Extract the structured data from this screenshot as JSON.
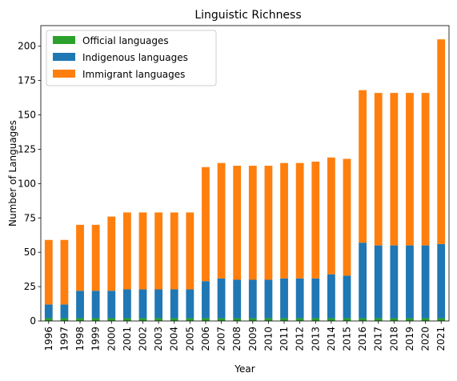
{
  "chart_data": {
    "type": "bar",
    "stacked": true,
    "title": "Linguistic Richness",
    "xlabel": "Year",
    "ylabel": "Number of Languages",
    "ylim": [
      0,
      215
    ],
    "yticks": [
      0,
      25,
      50,
      75,
      100,
      125,
      150,
      175,
      200
    ],
    "legend_position": "top-left",
    "categories": [
      "1996",
      "1997",
      "1998",
      "1999",
      "2000",
      "2001",
      "2002",
      "2003",
      "2004",
      "2005",
      "2006",
      "2007",
      "2008",
      "2009",
      "2010",
      "2011",
      "2012",
      "2013",
      "2014",
      "2015",
      "2016",
      "2017",
      "2018",
      "2019",
      "2020",
      "2021"
    ],
    "series": [
      {
        "name": "Official languages",
        "color": "#2ca02c",
        "values": [
          2,
          2,
          2,
          2,
          2,
          2,
          2,
          2,
          2,
          2,
          2,
          2,
          2,
          2,
          2,
          2,
          2,
          2,
          2,
          2,
          2,
          2,
          2,
          2,
          2,
          2
        ]
      },
      {
        "name": "Indigenous languages",
        "color": "#1f77b4",
        "values": [
          10,
          10,
          20,
          20,
          20,
          21,
          21,
          21,
          21,
          21,
          27,
          29,
          28,
          28,
          28,
          29,
          29,
          29,
          32,
          31,
          55,
          53,
          53,
          53,
          53,
          54
        ]
      },
      {
        "name": "Immigrant languages",
        "color": "#ff7f0e",
        "values": [
          47,
          47,
          48,
          48,
          54,
          56,
          56,
          56,
          56,
          56,
          83,
          84,
          83,
          83,
          83,
          84,
          84,
          85,
          85,
          85,
          111,
          111,
          111,
          111,
          111,
          149
        ]
      }
    ]
  }
}
